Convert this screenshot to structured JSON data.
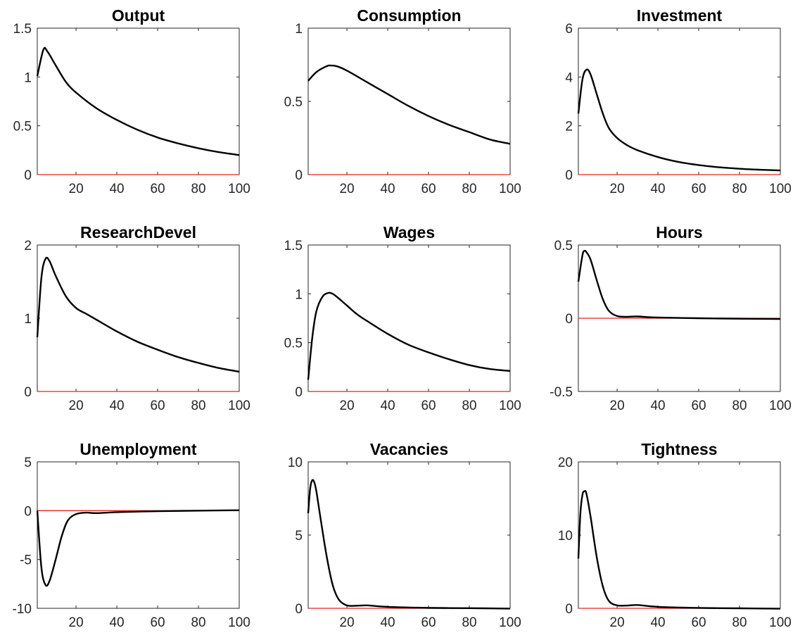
{
  "chart_data": [
    {
      "type": "line",
      "title": "Output",
      "x": [
        1,
        4,
        6,
        10,
        15,
        20,
        30,
        40,
        50,
        60,
        70,
        80,
        90,
        100
      ],
      "series": [
        {
          "values": [
            1.01,
            1.28,
            1.26,
            1.12,
            0.95,
            0.84,
            0.68,
            0.56,
            0.46,
            0.38,
            0.32,
            0.27,
            0.23,
            0.2
          ]
        }
      ],
      "reference_line": {
        "y": 0,
        "color": "#e8251e"
      },
      "xlim": [
        1,
        100
      ],
      "ylim": [
        0,
        1.5
      ],
      "xticks": [
        "20",
        "40",
        "60",
        "80",
        "100"
      ],
      "yticks": [
        "0",
        "0.5",
        "1",
        "1.5"
      ]
    },
    {
      "type": "line",
      "title": "Consumption",
      "x": [
        1,
        5,
        10,
        12,
        15,
        20,
        30,
        40,
        50,
        60,
        70,
        80,
        90,
        100
      ],
      "series": [
        {
          "values": [
            0.64,
            0.7,
            0.74,
            0.745,
            0.74,
            0.71,
            0.63,
            0.55,
            0.47,
            0.4,
            0.34,
            0.29,
            0.24,
            0.21
          ]
        }
      ],
      "reference_line": {
        "y": 0,
        "color": "#e8251e"
      },
      "xlim": [
        1,
        100
      ],
      "ylim": [
        0,
        1
      ],
      "xticks": [
        "20",
        "40",
        "60",
        "80",
        "100"
      ],
      "yticks": [
        "0",
        "0.5",
        "1"
      ]
    },
    {
      "type": "line",
      "title": "Investment",
      "x": [
        1,
        3,
        5,
        7,
        10,
        13,
        16,
        20,
        25,
        30,
        40,
        50,
        60,
        70,
        80,
        90,
        100
      ],
      "series": [
        {
          "values": [
            2.5,
            3.9,
            4.3,
            4.1,
            3.3,
            2.5,
            1.9,
            1.5,
            1.2,
            1.0,
            0.72,
            0.52,
            0.39,
            0.3,
            0.24,
            0.2,
            0.17
          ]
        }
      ],
      "reference_line": {
        "y": 0,
        "color": "#e8251e"
      },
      "xlim": [
        1,
        100
      ],
      "ylim": [
        0,
        6
      ],
      "xticks": [
        "20",
        "40",
        "60",
        "80",
        "100"
      ],
      "yticks": [
        "0",
        "2",
        "4",
        "6"
      ]
    },
    {
      "type": "line",
      "title": "ResearchDevel",
      "x": [
        1,
        3,
        5,
        7,
        10,
        15,
        20,
        25,
        30,
        40,
        50,
        60,
        70,
        80,
        90,
        100
      ],
      "series": [
        {
          "values": [
            0.74,
            1.55,
            1.81,
            1.78,
            1.58,
            1.3,
            1.14,
            1.06,
            0.98,
            0.82,
            0.68,
            0.57,
            0.47,
            0.39,
            0.32,
            0.27
          ]
        }
      ],
      "reference_line": {
        "y": 0,
        "color": "#e8251e"
      },
      "xlim": [
        1,
        100
      ],
      "ylim": [
        0,
        2
      ],
      "xticks": [
        "20",
        "40",
        "60",
        "80",
        "100"
      ],
      "yticks": [
        "0",
        "1",
        "2"
      ]
    },
    {
      "type": "line",
      "title": "Wages",
      "x": [
        1,
        3,
        5,
        8,
        11,
        13,
        15,
        20,
        25,
        30,
        40,
        50,
        60,
        70,
        80,
        90,
        100
      ],
      "series": [
        {
          "values": [
            0.12,
            0.55,
            0.82,
            0.97,
            1.01,
            1.0,
            0.97,
            0.88,
            0.79,
            0.72,
            0.59,
            0.48,
            0.4,
            0.33,
            0.27,
            0.23,
            0.21
          ]
        }
      ],
      "reference_line": {
        "y": 0,
        "color": "#e8251e"
      },
      "xlim": [
        1,
        100
      ],
      "ylim": [
        0,
        1.5
      ],
      "xticks": [
        "20",
        "40",
        "60",
        "80",
        "100"
      ],
      "yticks": [
        "0",
        "0.5",
        "1",
        "1.5"
      ]
    },
    {
      "type": "line",
      "title": "Hours",
      "x": [
        1,
        3,
        4,
        5,
        7,
        10,
        13,
        16,
        20,
        25,
        30,
        40,
        60,
        80,
        100
      ],
      "series": [
        {
          "values": [
            0.25,
            0.43,
            0.46,
            0.45,
            0.4,
            0.26,
            0.13,
            0.05,
            0.015,
            0.01,
            0.012,
            0.005,
            0.0,
            -0.003,
            -0.005
          ]
        }
      ],
      "reference_line": {
        "y": 0,
        "color": "#e8251e"
      },
      "xlim": [
        1,
        100
      ],
      "ylim": [
        -0.5,
        0.5
      ],
      "xticks": [
        "20",
        "40",
        "60",
        "80",
        "100"
      ],
      "yticks": [
        "-0.5",
        "0",
        "0.5"
      ]
    },
    {
      "type": "line",
      "title": "Unemployment",
      "x": [
        1,
        3,
        5,
        7,
        10,
        13,
        16,
        20,
        25,
        30,
        40,
        60,
        80,
        100
      ],
      "series": [
        {
          "values": [
            0.0,
            -5.8,
            -7.6,
            -7.2,
            -5.0,
            -2.6,
            -1.0,
            -0.35,
            -0.2,
            -0.25,
            -0.15,
            -0.05,
            0.0,
            0.05
          ]
        }
      ],
      "reference_line": {
        "y": 0,
        "color": "#e8251e"
      },
      "xlim": [
        1,
        100
      ],
      "ylim": [
        -10,
        5
      ],
      "xticks": [
        "20",
        "40",
        "60",
        "80",
        "100"
      ],
      "yticks": [
        "-10",
        "-5",
        "0",
        "5"
      ]
    },
    {
      "type": "line",
      "title": "Vacancies",
      "x": [
        1,
        2,
        3,
        4,
        5,
        7,
        10,
        13,
        16,
        20,
        25,
        30,
        40,
        60,
        80,
        100
      ],
      "series": [
        {
          "values": [
            6.5,
            8.2,
            8.75,
            8.6,
            8.0,
            6.2,
            3.6,
            1.6,
            0.6,
            0.2,
            0.18,
            0.2,
            0.1,
            0.03,
            0.01,
            -0.02
          ]
        }
      ],
      "reference_line": {
        "y": 0,
        "color": "#e8251e"
      },
      "xlim": [
        1,
        100
      ],
      "ylim": [
        0,
        10
      ],
      "xticks": [
        "20",
        "40",
        "60",
        "80",
        "100"
      ],
      "yticks": [
        "0",
        "5",
        "10"
      ]
    },
    {
      "type": "line",
      "title": "Tightness",
      "x": [
        1,
        2,
        3,
        4,
        5,
        7,
        10,
        13,
        16,
        20,
        25,
        30,
        40,
        60,
        80,
        100
      ],
      "series": [
        {
          "values": [
            6.8,
            13.0,
            15.5,
            16.0,
            15.6,
            12.5,
            7.0,
            3.0,
            1.0,
            0.4,
            0.38,
            0.45,
            0.2,
            0.05,
            0.0,
            -0.05
          ]
        }
      ],
      "reference_line": {
        "y": 0,
        "color": "#e8251e"
      },
      "xlim": [
        1,
        100
      ],
      "ylim": [
        0,
        20
      ],
      "xticks": [
        "20",
        "40",
        "60",
        "80",
        "100"
      ],
      "yticks": [
        "0",
        "10",
        "20"
      ]
    }
  ]
}
